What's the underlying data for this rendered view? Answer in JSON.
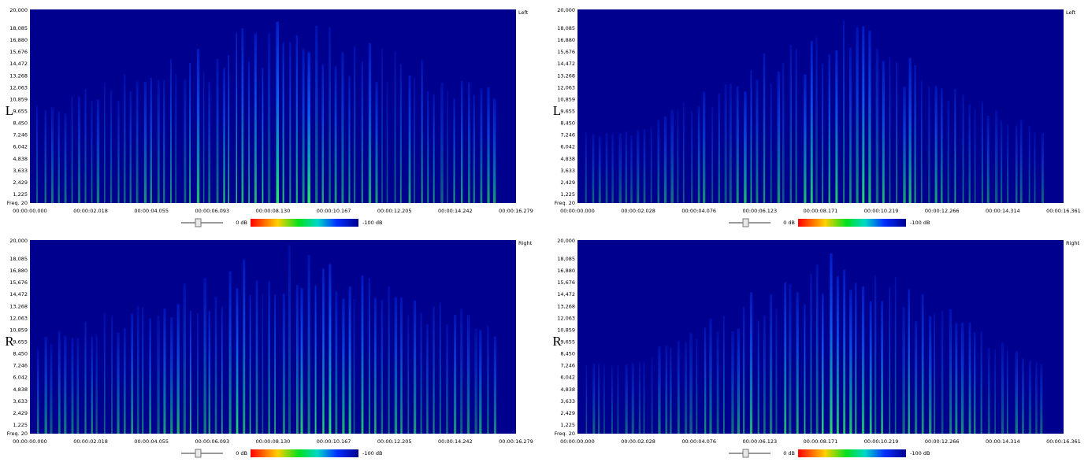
{
  "panels": [
    {
      "side_label": "L",
      "channel": "Left",
      "freq_ticks": [
        "20,000",
        "18,085",
        "16,880",
        "15,676",
        "14,472",
        "13,268",
        "12,063",
        "10,859",
        "9,655",
        "8,450",
        "7,246",
        "6,042",
        "4,838",
        "3,633",
        "2,429",
        "1,225"
      ],
      "freq_bottom": "Freq. 20",
      "time_ticks": [
        "00:00:00.000",
        "00:00:02.018",
        "00:00:04.055",
        "00:00:06.093",
        "00:00:08.130",
        "00:00:10.167",
        "00:00:12.205",
        "00:00:14.242",
        "00:00:16.279"
      ],
      "scale_max": "0 dB",
      "scale_min": "-100 dB"
    },
    {
      "side_label": "R",
      "channel": "Right",
      "freq_ticks": [
        "20,000",
        "18,085",
        "16,880",
        "15,676",
        "14,472",
        "13,268",
        "12,063",
        "10,859",
        "9,655",
        "8,450",
        "7,246",
        "6,042",
        "4,838",
        "3,633",
        "2,429",
        "1,225"
      ],
      "freq_bottom": "Freq. 20",
      "time_ticks": [
        "00:00:00.000",
        "00:00:02.018",
        "00:00:04.055",
        "00:00:06.093",
        "00:00:08.130",
        "00:00:10.167",
        "00:00:12.205",
        "00:00:14.242",
        "00:00:16.279"
      ],
      "scale_max": "0 dB",
      "scale_min": "-100 dB"
    },
    {
      "side_label": "L",
      "channel": "Left",
      "freq_ticks": [
        "20,000",
        "18,085",
        "16,880",
        "15,676",
        "14,472",
        "13,268",
        "12,063",
        "10,859",
        "9,655",
        "8,450",
        "7,246",
        "6,042",
        "4,838",
        "3,633",
        "2,429",
        "1,225"
      ],
      "freq_bottom": "Freq. 20",
      "time_ticks": [
        "00:00:00.000",
        "00:00:02.028",
        "00:00:04.076",
        "00:00:06.123",
        "00:00:08.171",
        "00:00:10.219",
        "00:00:12.266",
        "00:00:14.314",
        "00:00:16.361"
      ],
      "scale_max": "0 dB",
      "scale_min": "-100 dB"
    },
    {
      "side_label": "R",
      "channel": "Right",
      "freq_ticks": [
        "20,000",
        "18,085",
        "16,880",
        "15,676",
        "14,472",
        "13,268",
        "12,063",
        "10,859",
        "9,655",
        "8,450",
        "7,246",
        "6,042",
        "4,838",
        "3,633",
        "2,429",
        "1,225"
      ],
      "freq_bottom": "Freq. 20",
      "time_ticks": [
        "00:00:00.000",
        "00:00:02.028",
        "00:00:04.076",
        "00:00:06.123",
        "00:00:08.171",
        "00:00:10.219",
        "00:00:12.266",
        "00:00:14.314",
        "00:00:16.361"
      ],
      "scale_max": "0 dB",
      "scale_min": "-100 dB"
    }
  ]
}
